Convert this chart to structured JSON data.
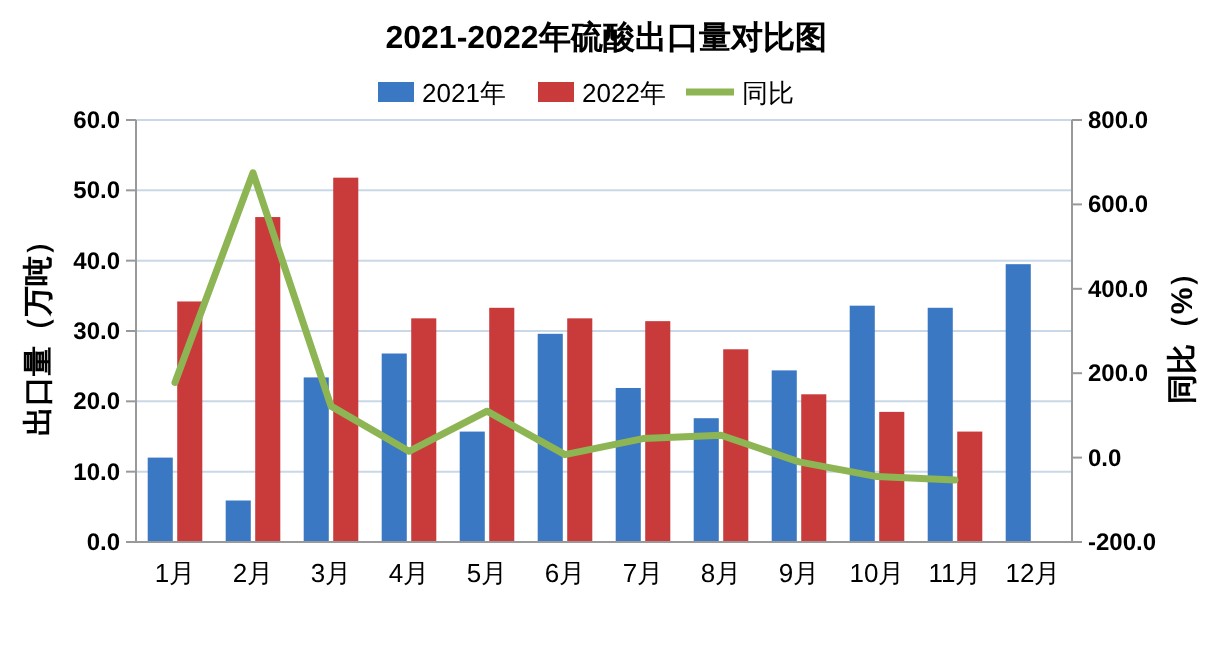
{
  "chart_data": {
    "type": "bar",
    "title": "2021-2022年硫酸出口量对比图",
    "ylabel": "出口量（万吨）",
    "y2label": "同比（%）",
    "categories": [
      "1月",
      "2月",
      "3月",
      "4月",
      "5月",
      "6月",
      "7月",
      "8月",
      "9月",
      "10月",
      "11月",
      "12月"
    ],
    "series": [
      {
        "name": "2021年",
        "color": "#3a78c3",
        "values": [
          12.0,
          5.9,
          23.4,
          26.8,
          15.7,
          29.6,
          21.9,
          17.6,
          24.4,
          33.6,
          33.3,
          39.5
        ]
      },
      {
        "name": "2022年",
        "color": "#c93a3a",
        "values": [
          34.2,
          46.2,
          51.8,
          31.8,
          33.3,
          31.8,
          31.4,
          27.4,
          21.0,
          18.5,
          15.7,
          null
        ]
      },
      {
        "name": "同比",
        "type": "line",
        "axis": "y2",
        "color": "#8db553",
        "values": [
          178,
          675,
          122,
          15,
          110,
          7,
          45,
          53,
          -10,
          -45,
          -53,
          null
        ]
      }
    ],
    "ylim": [
      0,
      60
    ],
    "yticks": [
      {
        "value": 0,
        "label": "0.0"
      },
      {
        "value": 10,
        "label": "10.0"
      },
      {
        "value": 20,
        "label": "20.0"
      },
      {
        "value": 30,
        "label": "30.0"
      },
      {
        "value": 40,
        "label": "40.0"
      },
      {
        "value": 50,
        "label": "50.0"
      },
      {
        "value": 60,
        "label": "60.0"
      }
    ],
    "y2lim": [
      -200,
      800
    ],
    "y2ticks": [
      {
        "value": -200,
        "label": "-200.0"
      },
      {
        "value": 0,
        "label": "0.0"
      },
      {
        "value": 200,
        "label": "200.0"
      },
      {
        "value": 400,
        "label": "400.0"
      },
      {
        "value": 600,
        "label": "600.0"
      },
      {
        "value": 800,
        "label": "800.0"
      }
    ],
    "grid": "y",
    "legend": "top",
    "marker": "none",
    "line_style": "solid"
  }
}
